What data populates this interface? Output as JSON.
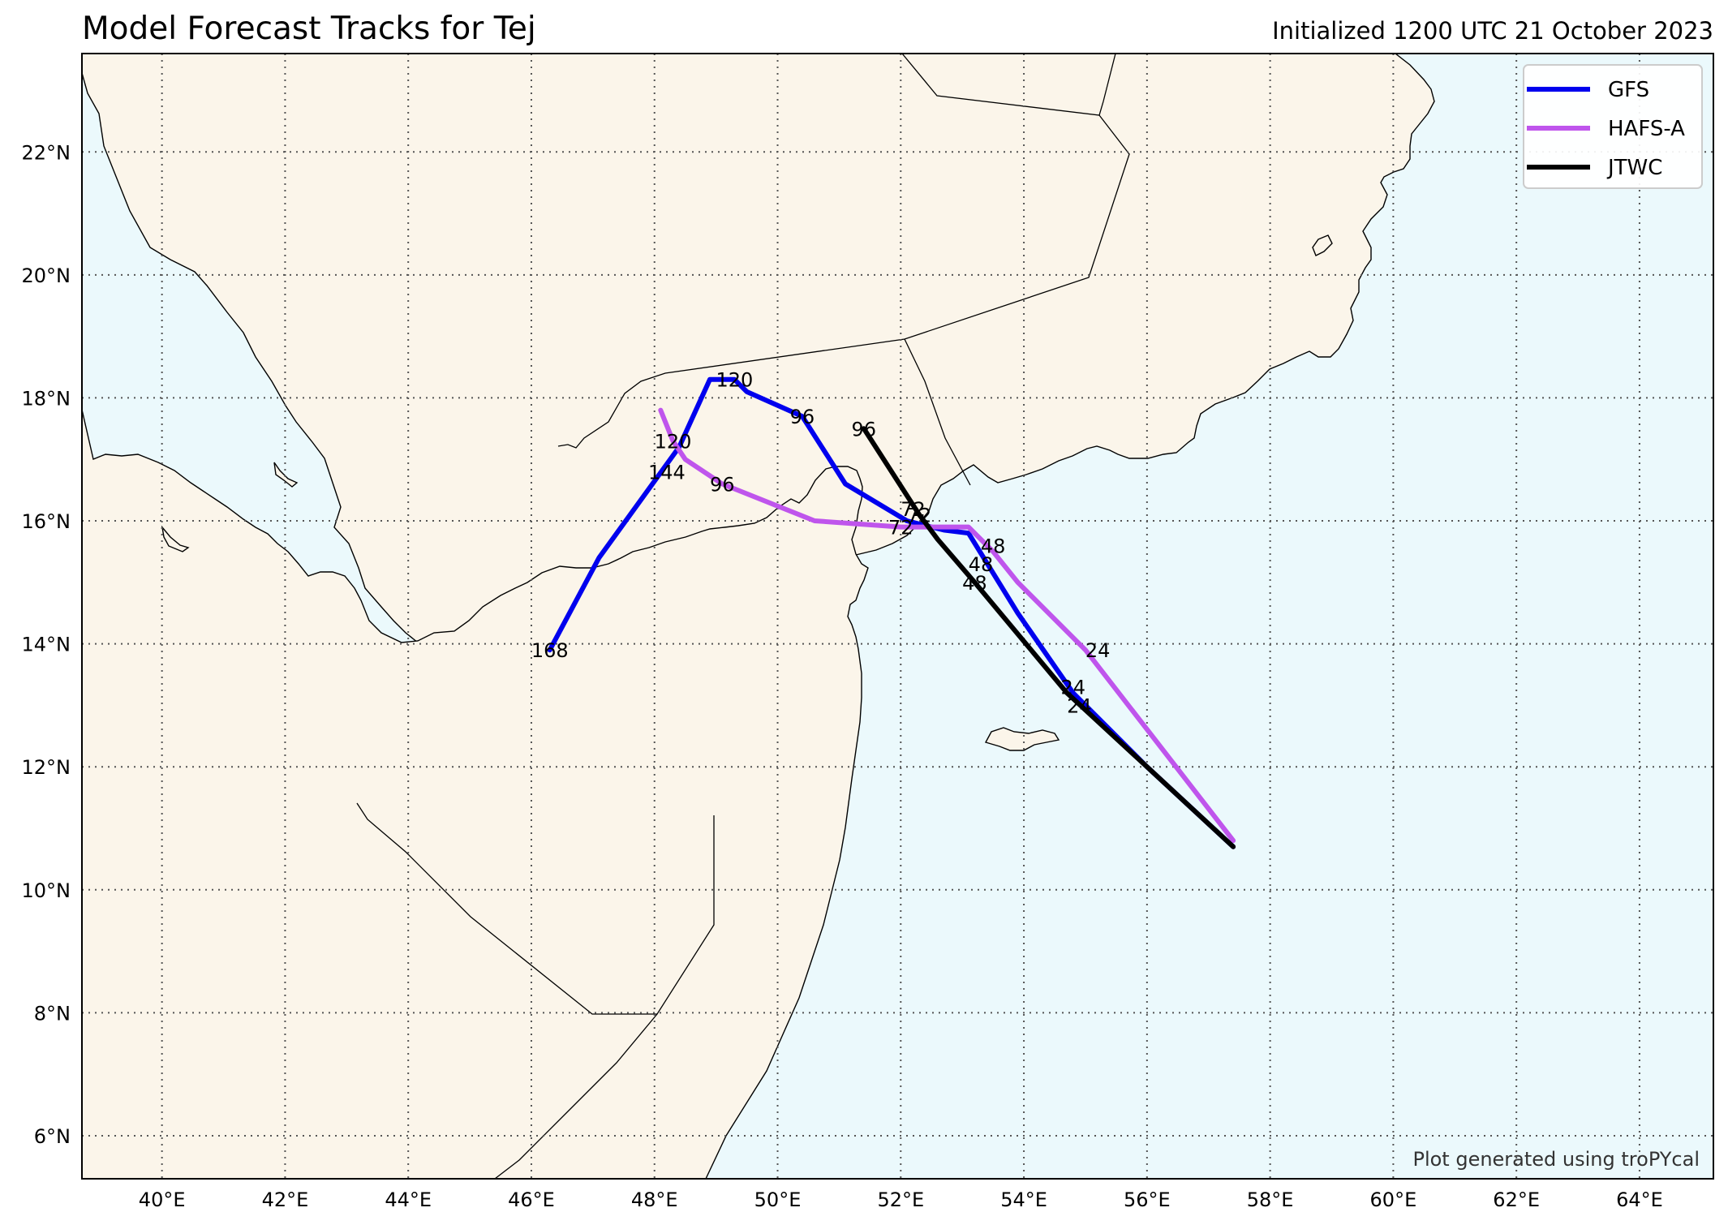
{
  "title": "Model Forecast Tracks for Tej",
  "subtitle": "Initialized 1200 UTC 21 October 2023",
  "credit": "Plot generated using troPYcal",
  "colors": {
    "ocean": "#ebf9fc",
    "land": "#fbf5ea",
    "GFS": "#0000ee",
    "HAFS-A": "#bf55ec",
    "JTWC": "#000000"
  },
  "map": {
    "lon_range": [
      38.7,
      65.2
    ],
    "lat_range": [
      5.3,
      23.6
    ],
    "lon_ticks": [
      40,
      42,
      44,
      46,
      48,
      50,
      52,
      54,
      56,
      58,
      60,
      62,
      64
    ],
    "lat_ticks": [
      6,
      8,
      10,
      12,
      14,
      16,
      18,
      20,
      22
    ],
    "lon_tick_labels": [
      "40°E",
      "42°E",
      "44°E",
      "46°E",
      "48°E",
      "50°E",
      "52°E",
      "54°E",
      "56°E",
      "58°E",
      "60°E",
      "62°E",
      "64°E"
    ],
    "lat_tick_labels": [
      "6°N",
      "8°N",
      "10°N",
      "12°N",
      "14°N",
      "16°N",
      "18°N",
      "20°N",
      "22°N"
    ],
    "grid": true,
    "legend_position": "top-right"
  },
  "legend": [
    {
      "name": "GFS",
      "color": "#0000ee"
    },
    {
      "name": "HAFS-A",
      "color": "#bf55ec"
    },
    {
      "name": "JTWC",
      "color": "#000000"
    }
  ],
  "tracks": [
    {
      "name": "GFS",
      "color": "#0000ee",
      "points": [
        [
          57.4,
          10.7
        ],
        [
          56.0,
          12.0
        ],
        [
          54.8,
          13.2
        ],
        [
          53.9,
          14.5
        ],
        [
          53.1,
          15.8
        ],
        [
          52.7,
          15.85
        ],
        [
          52.1,
          16.0
        ],
        [
          51.1,
          16.6
        ],
        [
          50.4,
          17.7
        ],
        [
          49.5,
          18.1
        ],
        [
          49.3,
          18.3
        ],
        [
          48.9,
          18.3
        ],
        [
          48.4,
          17.2
        ],
        [
          47.1,
          15.4
        ],
        [
          46.3,
          13.9
        ]
      ],
      "labels": [
        {
          "text": "24",
          "lon": 54.9,
          "lat": 13.0
        },
        {
          "text": "48",
          "lon": 53.3,
          "lat": 15.3
        },
        {
          "text": "72",
          "lon": 52.0,
          "lat": 15.9
        },
        {
          "text": "96",
          "lon": 50.4,
          "lat": 17.7
        },
        {
          "text": "120",
          "lon": 49.3,
          "lat": 18.3
        },
        {
          "text": "168",
          "lon": 46.3,
          "lat": 13.9
        }
      ]
    },
    {
      "name": "HAFS-A",
      "color": "#bf55ec",
      "points": [
        [
          57.4,
          10.8
        ],
        [
          55.0,
          13.9
        ],
        [
          53.9,
          15.0
        ],
        [
          53.5,
          15.5
        ],
        [
          53.1,
          15.9
        ],
        [
          52.7,
          15.9
        ],
        [
          52.0,
          15.9
        ],
        [
          50.6,
          16.0
        ],
        [
          49.1,
          16.6
        ],
        [
          48.5,
          17.0
        ],
        [
          48.3,
          17.3
        ],
        [
          48.1,
          17.8
        ]
      ],
      "labels": [
        {
          "text": "24",
          "lon": 55.2,
          "lat": 13.9
        },
        {
          "text": "48",
          "lon": 53.5,
          "lat": 15.6
        },
        {
          "text": "72",
          "lon": 52.2,
          "lat": 16.2
        },
        {
          "text": "96",
          "lon": 49.1,
          "lat": 16.6
        },
        {
          "text": "120",
          "lon": 48.3,
          "lat": 17.3
        },
        {
          "text": "144",
          "lon": 48.2,
          "lat": 16.8
        }
      ]
    },
    {
      "name": "JTWC",
      "color": "#000000",
      "points": [
        [
          57.4,
          10.7
        ],
        [
          56.0,
          12.0
        ],
        [
          54.7,
          13.2
        ],
        [
          53.2,
          15.0
        ],
        [
          52.6,
          15.7
        ],
        [
          52.3,
          16.1
        ],
        [
          51.4,
          17.5
        ]
      ],
      "labels": [
        {
          "text": "24",
          "lon": 54.8,
          "lat": 13.3
        },
        {
          "text": "48",
          "lon": 53.2,
          "lat": 15.0
        },
        {
          "text": "72",
          "lon": 52.3,
          "lat": 16.1
        },
        {
          "text": "96",
          "lon": 51.4,
          "lat": 17.5
        }
      ]
    }
  ]
}
